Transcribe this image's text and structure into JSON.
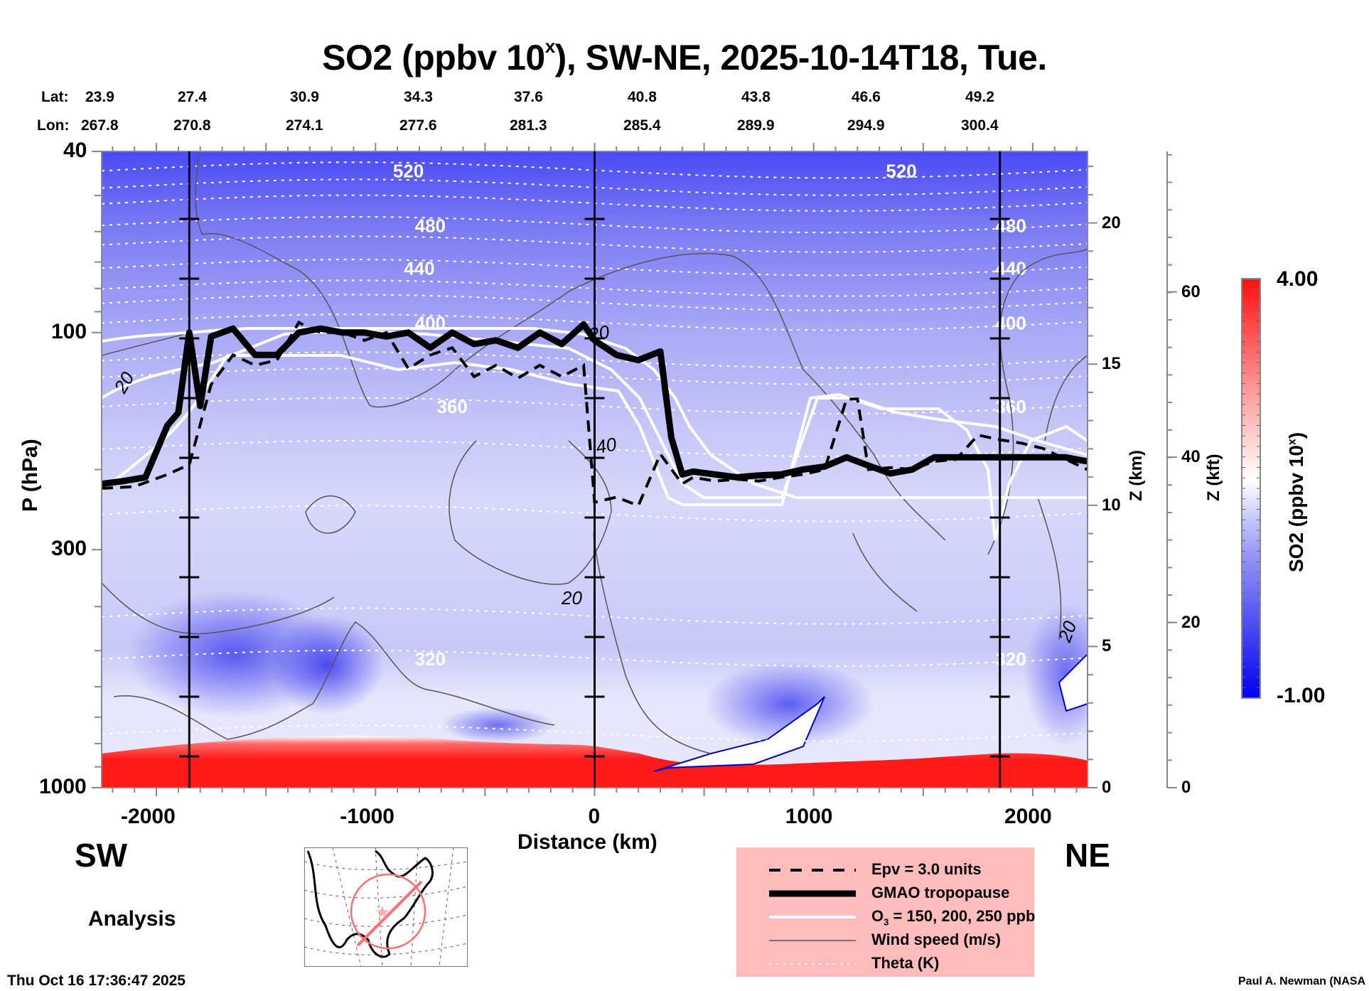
{
  "chart_data": {
    "type": "heatmap",
    "title": "SO2 (ppbv 10",
    "title_sup": "x",
    "title_suffix": "), SW-NE, 2025-10-14T18, Tue.",
    "variable": "SO2",
    "units": "ppbv 10^x",
    "xlabel": "Distance (km)",
    "ylabel": "P (hPa)",
    "xlim": [
      -2250,
      2250
    ],
    "ylim": [
      1000,
      40
    ],
    "yscale": "log",
    "x_ticks": [
      -2000,
      -1000,
      0,
      1000,
      2000
    ],
    "x_tick_labels": [
      "-2000",
      "-1000",
      "0",
      "1000",
      "2000"
    ],
    "y_ticks": [
      40,
      100,
      300,
      1000
    ],
    "y_tick_labels": [
      "40",
      "100",
      "300",
      "1000"
    ],
    "right_axis_km": {
      "label": "Z (km)",
      "ticks": [
        0,
        5,
        10,
        15,
        20
      ],
      "tick_labels": [
        "0",
        "5",
        "10",
        "15",
        "20"
      ]
    },
    "right_axis_kft": {
      "label": "Z (kft)",
      "ticks": [
        0,
        20,
        40,
        60
      ],
      "tick_labels": [
        "0",
        "20",
        "40",
        "60"
      ]
    },
    "lat_row": {
      "label": "Lat:",
      "values": [
        "23.9",
        "27.4",
        "30.9",
        "34.3",
        "37.6",
        "40.8",
        "43.8",
        "46.6",
        "49.2"
      ]
    },
    "lon_row": {
      "label": "Lon:",
      "values": [
        "267.8",
        "270.8",
        "274.1",
        "277.6",
        "281.3",
        "285.4",
        "289.9",
        "294.9",
        "300.4"
      ]
    },
    "colorbar": {
      "label": "SO2 (ppbv 10",
      "label_sup": "x",
      "label_suffix": ")",
      "min": -1.0,
      "max": 4.0,
      "min_label": "-1.00",
      "max_label": "4.00",
      "low_color": "#0000ff",
      "mid_color": "#ffffff",
      "high_color": "#ff0000",
      "levels": 40
    },
    "vertical_markers_km": [
      -1850,
      0,
      1850
    ],
    "theta_contours_K": [
      {
        "value": 520,
        "label": "520"
      },
      {
        "value": 480,
        "label": "480"
      },
      {
        "value": 440,
        "label": "440"
      },
      {
        "value": 400,
        "label": "400"
      },
      {
        "value": 360,
        "label": "360"
      },
      {
        "value": 320,
        "label": "320"
      }
    ],
    "wind_labels": [
      "20",
      "20",
      "40",
      "20",
      "20"
    ],
    "tropopause_hPa": {
      "x": [
        -2250,
        -2150,
        -2050,
        -1950,
        -1900,
        -1850,
        -1800,
        -1750,
        -1650,
        -1550,
        -1450,
        -1350,
        -1250,
        -1150,
        -1050,
        -950,
        -850,
        -750,
        -650,
        -550,
        -450,
        -350,
        -250,
        -150,
        -50,
        0,
        100,
        200,
        300,
        350,
        400,
        450,
        550,
        650,
        750,
        850,
        950,
        1050,
        1150,
        1250,
        1350,
        1450,
        1550,
        1650,
        1750,
        1850,
        1950,
        2050,
        2150,
        2250
      ],
      "p": [
        215,
        212,
        208,
        160,
        150,
        100,
        145,
        102,
        98,
        112,
        112,
        100,
        98,
        100,
        100,
        102,
        100,
        108,
        100,
        106,
        104,
        108,
        100,
        106,
        96,
        104,
        112,
        115,
        110,
        170,
        205,
        202,
        205,
        208,
        206,
        205,
        200,
        197,
        188,
        196,
        204,
        200,
        188,
        188,
        188,
        188,
        188,
        188,
        188,
        192
      ]
    },
    "epv_hPa": {
      "x": [
        -2250,
        -2100,
        -1950,
        -1850,
        -1750,
        -1650,
        -1550,
        -1450,
        -1350,
        -1300,
        -1250,
        -1150,
        -1050,
        -950,
        -850,
        -750,
        -650,
        -550,
        -450,
        -350,
        -250,
        -150,
        -50,
        0,
        100,
        200,
        300,
        400,
        450,
        550,
        650,
        750,
        850,
        950,
        1050,
        1150,
        1200,
        1250,
        1350,
        1450,
        1550,
        1650,
        1750,
        1850,
        1950,
        2050,
        2150,
        2250
      ],
      "p": [
        220,
        218,
        205,
        195,
        130,
        112,
        118,
        115,
        95,
        98,
        100,
        100,
        104,
        100,
        120,
        112,
        108,
        125,
        118,
        126,
        118,
        125,
        118,
        236,
        230,
        240,
        185,
        215,
        208,
        212,
        210,
        212,
        208,
        205,
        200,
        140,
        140,
        200,
        198,
        200,
        192,
        190,
        168,
        172,
        175,
        180,
        190,
        200
      ]
    },
    "o3_contours_ppb": [
      150,
      200,
      250
    ],
    "legend": [
      {
        "style": "dashed-black",
        "label": "Epv = 3.0 units"
      },
      {
        "style": "thick-black",
        "label": "GMAO tropopause"
      },
      {
        "style": "white",
        "label": "O",
        "sub": "3",
        "label_suffix": " = 150, 200, 250 ppb"
      },
      {
        "style": "thin-gray",
        "label": "Wind speed (m/s)"
      },
      {
        "style": "dotted-white",
        "label": "Theta (K)"
      }
    ]
  },
  "labels": {
    "sw": "SW",
    "ne": "NE",
    "analysis": "Analysis",
    "timestamp": "Thu Oct 16 17:36:47 2025",
    "credit": "Paul A. Newman (NASA"
  }
}
